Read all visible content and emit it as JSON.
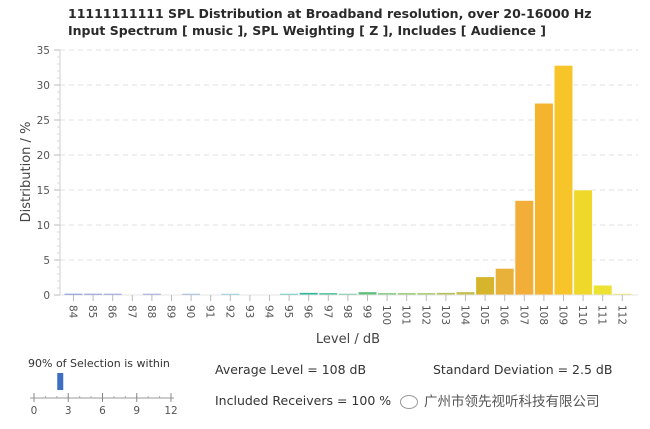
{
  "chart_data": {
    "type": "bar",
    "title": "11111111111 SPL Distribution at Broadband resolution, over 20-16000 Hz",
    "subtitle": "Input Spectrum [ music ], SPL Weighting [ Z ], Includes [ Audience ]",
    "xlabel": "Level / dB",
    "ylabel": "Distribution / %",
    "ylim": [
      0,
      35
    ],
    "yticks": [
      "0",
      "5",
      "10",
      "15",
      "20",
      "25",
      "30",
      "35"
    ],
    "grid": true,
    "categories": [
      "84",
      "85",
      "86",
      "87",
      "88",
      "89",
      "90",
      "91",
      "92",
      "93",
      "94",
      "95",
      "96",
      "97",
      "98",
      "99",
      "100",
      "101",
      "102",
      "103",
      "104",
      "105",
      "106",
      "107",
      "108",
      "109",
      "110",
      "111",
      "112"
    ],
    "values": [
      0.15,
      0.15,
      0.15,
      0.0,
      0.15,
      0.0,
      0.15,
      0.0,
      0.15,
      0.0,
      0.0,
      0.15,
      0.35,
      0.3,
      0.15,
      0.45,
      0.3,
      0.3,
      0.3,
      0.35,
      0.45,
      2.6,
      3.8,
      13.5,
      27.4,
      32.8,
      15.0,
      1.4,
      0.1
    ],
    "colors": [
      "#5a6fd0",
      "#6a78d4",
      "#6f80d6",
      "#7a8ad8",
      "#7d90da",
      "#7fa0d8",
      "#80aede",
      "#7fbedc",
      "#78c8d8",
      "#5fc8c8",
      "#4fc4bc",
      "#3ec2b0",
      "#2fb897",
      "#38bc90",
      "#50c089",
      "#5cbf7c",
      "#74c474",
      "#8ac46a",
      "#9ec462",
      "#b3c25a",
      "#c4bf4c",
      "#d6b52c",
      "#e8b23a",
      "#f2ae38",
      "#f5b42e",
      "#f7c52a",
      "#efd82a",
      "#ede232",
      "#f0e05a"
    ]
  },
  "selection": {
    "title": "90% of Selection is within",
    "ticks": [
      "0",
      "3",
      "6",
      "9",
      "12"
    ],
    "range": [
      0,
      12
    ],
    "value": 2.3,
    "color": "#3f6fc0"
  },
  "stats": {
    "average": "Average Level = 108 dB",
    "std_dev": "Standard Deviation = 2.5 dB",
    "receivers": "Included Receivers = 100 %"
  },
  "watermark": "广州市领先视听科技有限公司"
}
